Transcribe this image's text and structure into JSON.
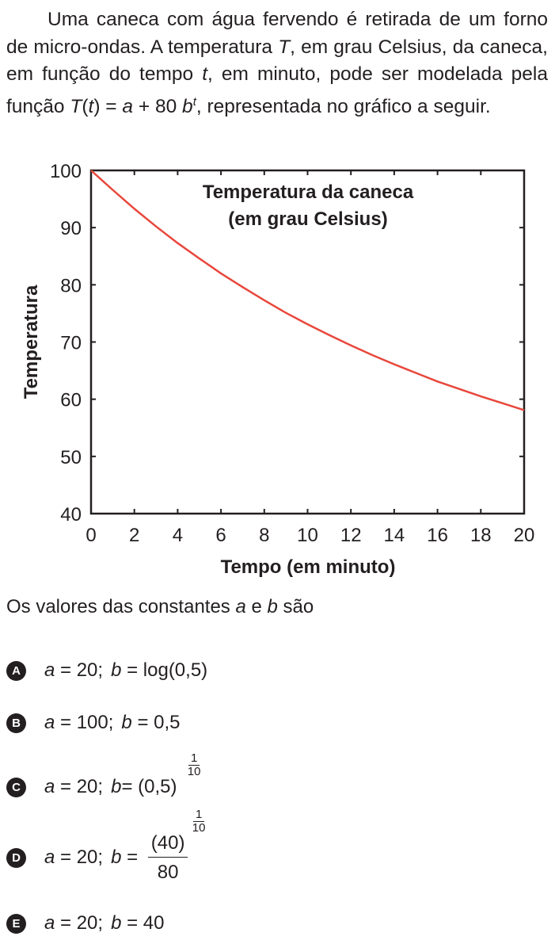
{
  "stem": {
    "part1": "Uma caneca com água fervendo é retirada de um forno de micro-ondas. A temperatura ",
    "var_T": "T",
    "part2": ", em grau Celsius, da caneca, em função do tempo ",
    "var_t": "t",
    "part3": ", em minuto, pode ser modelada pela função ",
    "formula_T": "T",
    "formula_open": "(",
    "formula_t": "t",
    "formula_close": ")",
    "formula_eq": " = ",
    "formula_a": "a",
    "formula_plus": " + 80 ",
    "formula_b": "b",
    "formula_sup": "t",
    "part4": ", representada no gráfico a seguir."
  },
  "chart_data": {
    "type": "line",
    "title_lines": [
      "Temperatura da caneca",
      "(em grau Celsius)"
    ],
    "xlabel": "Tempo (em minuto)",
    "ylabel": "Temperatura",
    "xlim": [
      0,
      20
    ],
    "ylim": [
      40,
      100
    ],
    "xticks": [
      0,
      2,
      4,
      6,
      8,
      10,
      12,
      14,
      16,
      18,
      20
    ],
    "yticks": [
      40,
      50,
      60,
      70,
      80,
      90,
      100
    ],
    "grid": false,
    "line_color": "#e8473c",
    "series": [
      {
        "x": [
          0,
          1,
          2,
          3,
          4,
          5,
          6,
          7,
          8,
          9,
          10,
          11,
          12,
          13,
          14,
          15,
          16,
          17,
          18,
          19,
          20
        ],
        "y": [
          100,
          96.6,
          93.3,
          90.2,
          87.3,
          84.6,
          82.0,
          79.6,
          77.3,
          75.1,
          73.1,
          71.2,
          69.4,
          67.7,
          66.1,
          64.6,
          63.1,
          61.8,
          60.5,
          59.3,
          58.1
        ]
      }
    ]
  },
  "question": {
    "part1": "Os valores das constantes ",
    "var_a": "a",
    "part2": " e ",
    "var_b": "b",
    "part3": " são"
  },
  "options": [
    {
      "letter": "A",
      "a": "a",
      "eq1": " = 20;",
      "b": "b",
      "eq2": " = log(0,5)"
    },
    {
      "letter": "B",
      "a": "a",
      "eq1": " = 100;",
      "b": "b",
      "eq2": " = 0,5"
    },
    {
      "letter": "C",
      "a": "a",
      "eq1": " = 20;",
      "b": "b",
      "eq2": " = (0,5)",
      "exp_num": "1",
      "exp_den": "10"
    },
    {
      "letter": "D",
      "a": "a",
      "eq1": " = 20;",
      "b": "b",
      "eq2": " = ",
      "frac_num": "(40)",
      "exp_num": "1",
      "exp_den": "10",
      "frac_den": "80"
    },
    {
      "letter": "E",
      "a": "a",
      "eq1": " = 20;",
      "b": "b",
      "eq2": " = 40"
    }
  ]
}
